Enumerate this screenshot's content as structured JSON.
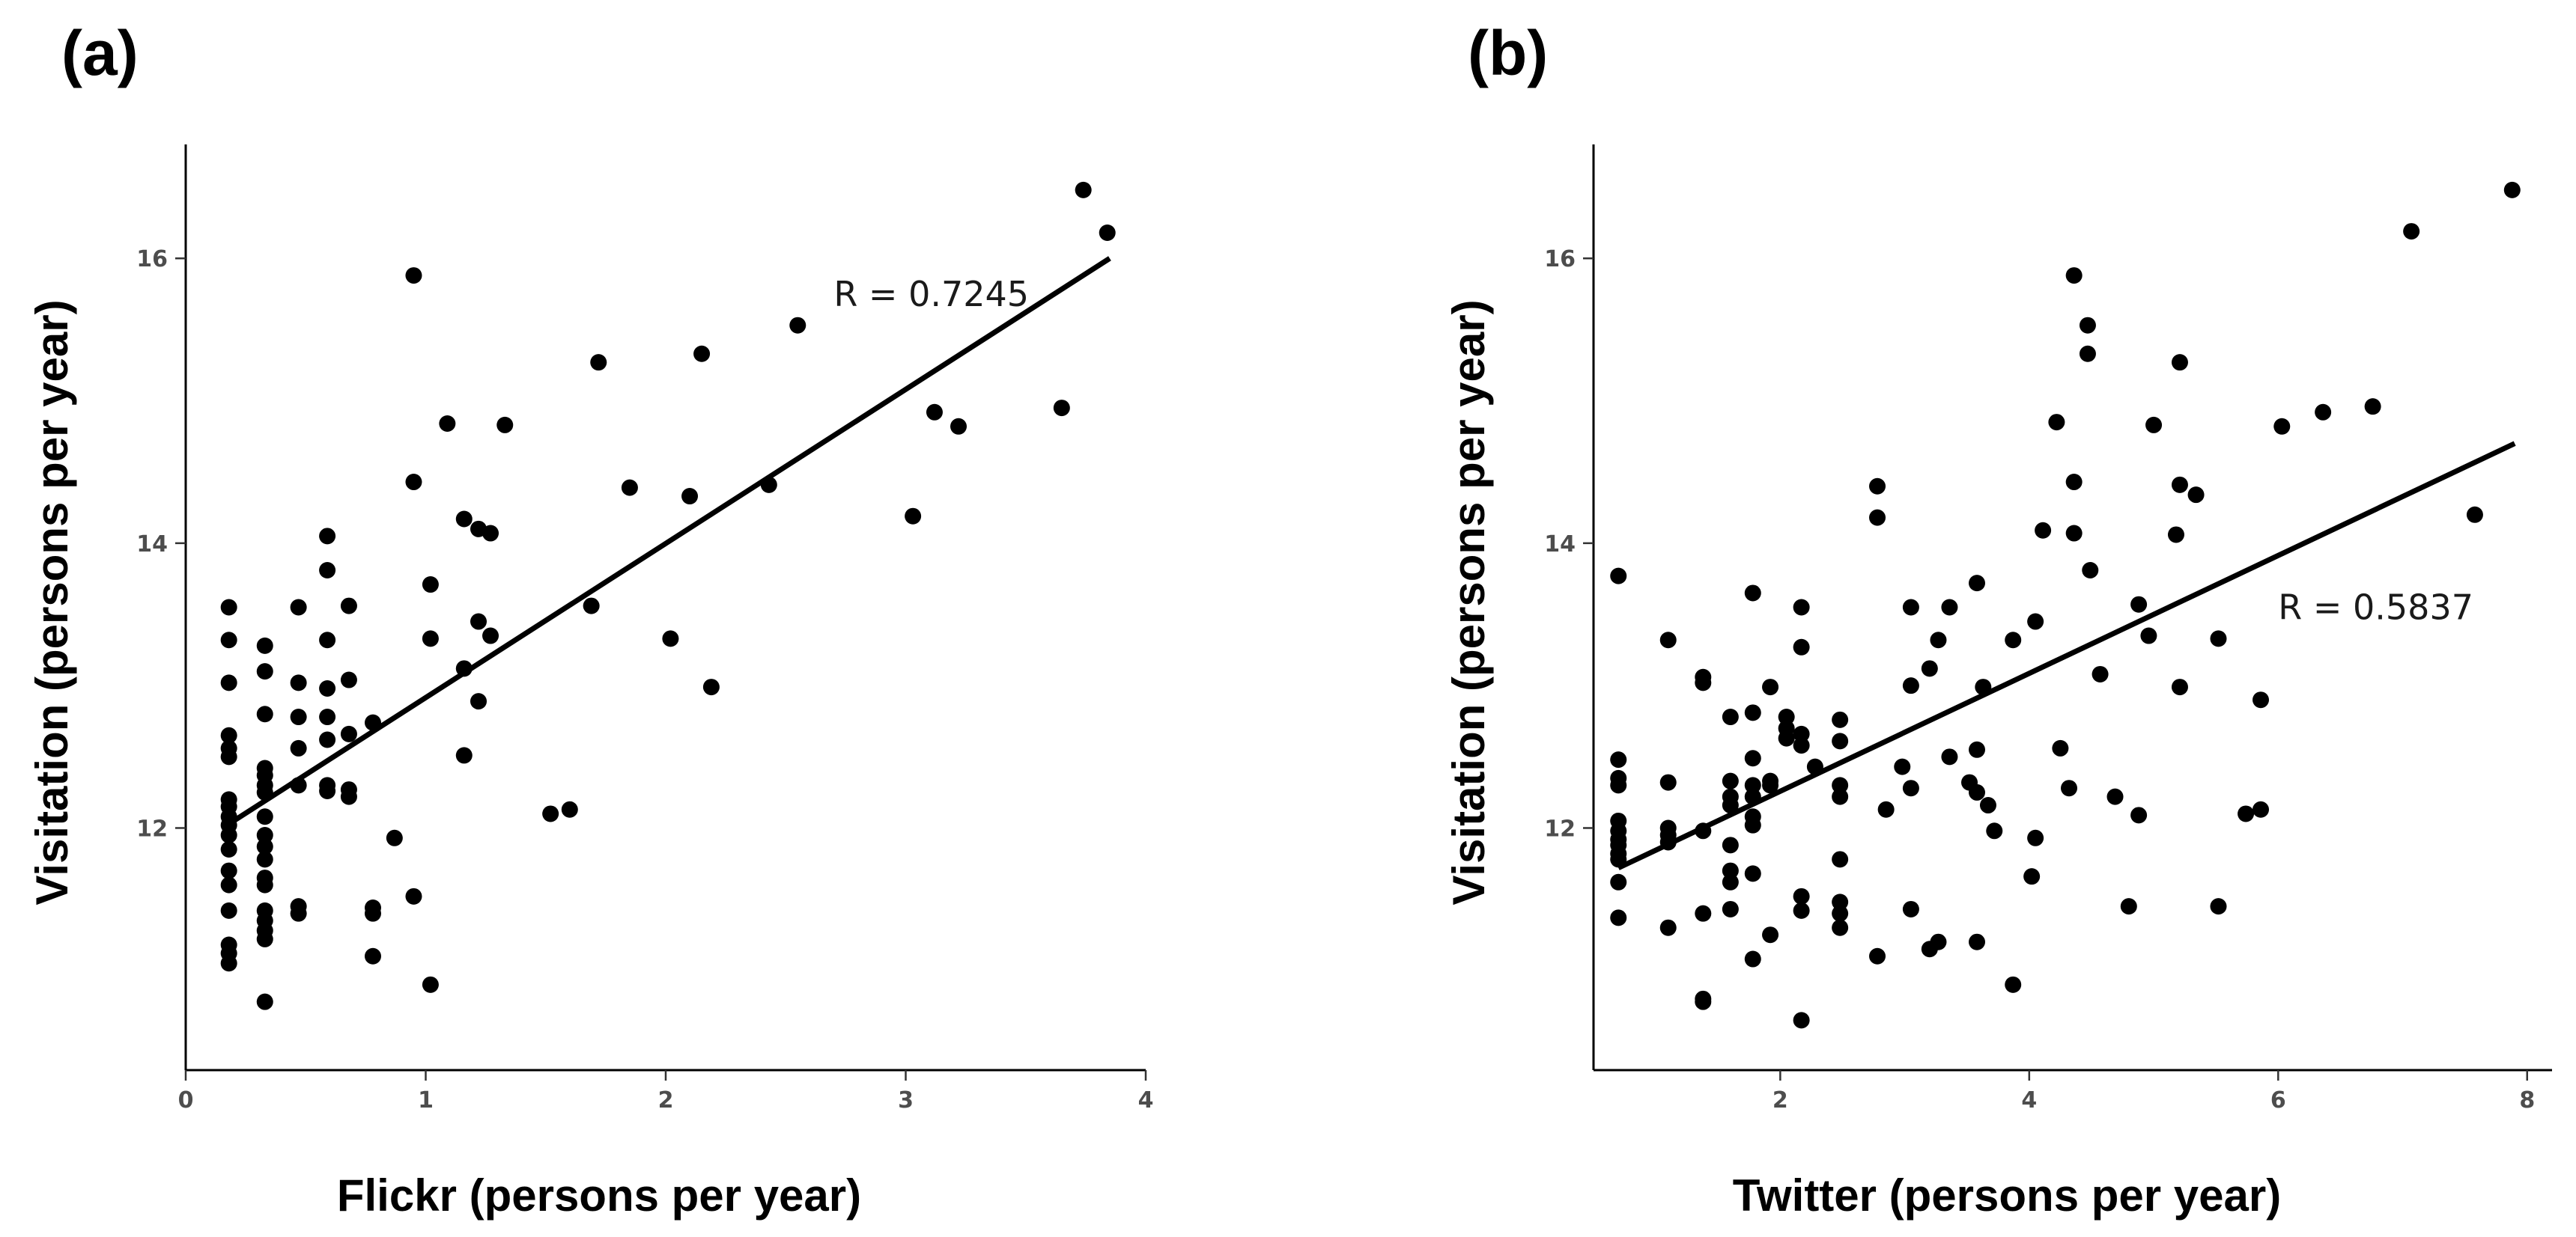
{
  "chart_data": [
    {
      "type": "scatter",
      "panel_label": "(a)",
      "xlabel": "Flickr (persons per year)",
      "ylabel": "Visitation (persons per year)",
      "xlim": [
        0,
        4
      ],
      "ylim": [
        10.3,
        16.8
      ],
      "xticks": [
        0,
        1,
        2,
        3,
        4
      ],
      "xtick_labels": [
        "0",
        "1",
        "2",
        "3",
        "4"
      ],
      "yticks": [
        12,
        14,
        16
      ],
      "ytick_labels": [
        "12",
        "14",
        "16"
      ],
      "grid": false,
      "legend": "none",
      "annotation": "R = 0.7245",
      "annotation_pos": [
        2.7,
        15.75
      ],
      "fit_line": {
        "x": [
          0.2,
          3.85
        ],
        "y": [
          12.05,
          16.0
        ]
      },
      "points": [
        [
          0.18,
          13.55
        ],
        [
          0.18,
          13.32
        ],
        [
          0.18,
          13.02
        ],
        [
          0.18,
          12.65
        ],
        [
          0.18,
          12.56
        ],
        [
          0.18,
          12.5
        ],
        [
          0.18,
          12.2
        ],
        [
          0.18,
          12.15
        ],
        [
          0.18,
          12.08
        ],
        [
          0.18,
          12.02
        ],
        [
          0.18,
          11.95
        ],
        [
          0.18,
          11.85
        ],
        [
          0.18,
          11.7
        ],
        [
          0.18,
          11.6
        ],
        [
          0.18,
          11.42
        ],
        [
          0.18,
          11.18
        ],
        [
          0.18,
          11.12
        ],
        [
          0.18,
          11.05
        ],
        [
          0.33,
          13.28
        ],
        [
          0.33,
          13.1
        ],
        [
          0.33,
          12.8
        ],
        [
          0.33,
          12.42
        ],
        [
          0.33,
          12.37
        ],
        [
          0.33,
          12.3
        ],
        [
          0.33,
          12.25
        ],
        [
          0.33,
          12.08
        ],
        [
          0.33,
          11.95
        ],
        [
          0.33,
          11.87
        ],
        [
          0.33,
          11.78
        ],
        [
          0.33,
          11.65
        ],
        [
          0.33,
          11.6
        ],
        [
          0.33,
          11.42
        ],
        [
          0.33,
          11.35
        ],
        [
          0.33,
          11.28
        ],
        [
          0.33,
          11.22
        ],
        [
          0.33,
          10.78
        ],
        [
          0.47,
          13.55
        ],
        [
          0.47,
          13.02
        ],
        [
          0.47,
          12.78
        ],
        [
          0.47,
          12.56
        ],
        [
          0.47,
          12.3
        ],
        [
          0.47,
          11.45
        ],
        [
          0.47,
          11.4
        ],
        [
          0.59,
          14.05
        ],
        [
          0.59,
          13.81
        ],
        [
          0.59,
          13.32
        ],
        [
          0.59,
          12.98
        ],
        [
          0.59,
          12.78
        ],
        [
          0.59,
          12.62
        ],
        [
          0.59,
          12.3
        ],
        [
          0.59,
          12.26
        ],
        [
          0.68,
          13.56
        ],
        [
          0.68,
          13.04
        ],
        [
          0.68,
          12.66
        ],
        [
          0.68,
          12.27
        ],
        [
          0.68,
          12.22
        ],
        [
          0.78,
          12.74
        ],
        [
          0.78,
          11.44
        ],
        [
          0.78,
          11.4
        ],
        [
          0.78,
          11.1
        ],
        [
          0.87,
          11.93
        ],
        [
          0.95,
          15.88
        ],
        [
          0.95,
          14.43
        ],
        [
          0.95,
          11.52
        ],
        [
          1.02,
          13.71
        ],
        [
          1.02,
          13.33
        ],
        [
          1.02,
          10.9
        ],
        [
          1.09,
          14.84
        ],
        [
          1.16,
          14.17
        ],
        [
          1.16,
          13.12
        ],
        [
          1.16,
          12.51
        ],
        [
          1.22,
          14.1
        ],
        [
          1.22,
          13.45
        ],
        [
          1.22,
          12.89
        ],
        [
          1.27,
          14.07
        ],
        [
          1.27,
          13.35
        ],
        [
          1.33,
          14.83
        ],
        [
          1.52,
          12.1
        ],
        [
          1.6,
          12.13
        ],
        [
          1.69,
          13.56
        ],
        [
          1.72,
          15.27
        ],
        [
          1.85,
          14.39
        ],
        [
          2.02,
          13.33
        ],
        [
          2.1,
          14.33
        ],
        [
          2.15,
          15.33
        ],
        [
          2.19,
          12.99
        ],
        [
          2.43,
          14.41
        ],
        [
          2.55,
          15.53
        ],
        [
          3.03,
          14.19
        ],
        [
          3.12,
          14.92
        ],
        [
          3.22,
          14.82
        ],
        [
          3.65,
          14.95
        ],
        [
          3.74,
          16.48
        ],
        [
          3.84,
          16.18
        ]
      ]
    },
    {
      "type": "scatter",
      "panel_label": "(b)",
      "xlabel": "Twitter (persons per year)",
      "ylabel": "Visitation (persons per year)",
      "xlim": [
        0.5,
        8.2
      ],
      "ylim": [
        10.3,
        16.8
      ],
      "xticks": [
        2,
        4,
        6,
        8
      ],
      "xtick_labels": [
        "2",
        "4",
        "6",
        "8"
      ],
      "yticks": [
        12,
        14,
        16
      ],
      "ytick_labels": [
        "12",
        "14",
        "16"
      ],
      "grid": false,
      "legend": "none",
      "annotation": "R = 0.5837",
      "annotation_pos": [
        6.0,
        13.55
      ],
      "fit_line": {
        "x": [
          0.7,
          7.9
        ],
        "y": [
          11.72,
          14.7
        ]
      },
      "points": [
        [
          0.7,
          13.77
        ],
        [
          0.7,
          12.48
        ],
        [
          0.7,
          12.35
        ],
        [
          0.7,
          12.3
        ],
        [
          0.7,
          12.05
        ],
        [
          0.7,
          11.98
        ],
        [
          0.7,
          11.92
        ],
        [
          0.7,
          11.88
        ],
        [
          0.7,
          11.82
        ],
        [
          0.7,
          11.78
        ],
        [
          0.7,
          11.62
        ],
        [
          0.7,
          11.37
        ],
        [
          1.1,
          13.32
        ],
        [
          1.1,
          12.32
        ],
        [
          1.1,
          12.0
        ],
        [
          1.1,
          11.95
        ],
        [
          1.1,
          11.9
        ],
        [
          1.1,
          11.3
        ],
        [
          1.38,
          13.06
        ],
        [
          1.38,
          13.02
        ],
        [
          1.38,
          11.98
        ],
        [
          1.38,
          11.4
        ],
        [
          1.38,
          10.8
        ],
        [
          1.38,
          10.78
        ],
        [
          1.6,
          12.78
        ],
        [
          1.6,
          12.33
        ],
        [
          1.6,
          12.22
        ],
        [
          1.6,
          12.16
        ],
        [
          1.6,
          11.88
        ],
        [
          1.6,
          11.7
        ],
        [
          1.6,
          11.62
        ],
        [
          1.6,
          11.43
        ],
        [
          1.78,
          13.65
        ],
        [
          1.78,
          12.81
        ],
        [
          1.78,
          12.49
        ],
        [
          1.78,
          12.3
        ],
        [
          1.78,
          12.22
        ],
        [
          1.78,
          12.08
        ],
        [
          1.78,
          12.02
        ],
        [
          1.78,
          11.68
        ],
        [
          1.78,
          11.08
        ],
        [
          1.92,
          12.99
        ],
        [
          1.92,
          12.33
        ],
        [
          1.92,
          12.3
        ],
        [
          1.92,
          11.25
        ],
        [
          2.05,
          12.78
        ],
        [
          2.05,
          12.7
        ],
        [
          2.05,
          12.63
        ],
        [
          2.17,
          13.55
        ],
        [
          2.17,
          13.27
        ],
        [
          2.17,
          12.66
        ],
        [
          2.17,
          12.58
        ],
        [
          2.17,
          11.52
        ],
        [
          2.17,
          11.42
        ],
        [
          2.17,
          10.65
        ],
        [
          2.28,
          12.43
        ],
        [
          2.48,
          12.76
        ],
        [
          2.48,
          12.61
        ],
        [
          2.48,
          12.3
        ],
        [
          2.48,
          12.22
        ],
        [
          2.48,
          11.78
        ],
        [
          2.48,
          11.48
        ],
        [
          2.48,
          11.4
        ],
        [
          2.48,
          11.3
        ],
        [
          2.78,
          14.4
        ],
        [
          2.78,
          14.18
        ],
        [
          2.78,
          11.1
        ],
        [
          2.85,
          12.13
        ],
        [
          2.98,
          12.43
        ],
        [
          3.05,
          13.55
        ],
        [
          3.05,
          13.0
        ],
        [
          3.05,
          12.28
        ],
        [
          3.05,
          11.43
        ],
        [
          3.2,
          13.12
        ],
        [
          3.2,
          11.15
        ],
        [
          3.27,
          13.32
        ],
        [
          3.27,
          11.2
        ],
        [
          3.36,
          13.55
        ],
        [
          3.36,
          12.5
        ],
        [
          3.52,
          12.32
        ],
        [
          3.58,
          13.72
        ],
        [
          3.58,
          12.55
        ],
        [
          3.58,
          12.25
        ],
        [
          3.58,
          11.2
        ],
        [
          3.63,
          12.99
        ],
        [
          3.67,
          12.16
        ],
        [
          3.72,
          11.98
        ],
        [
          3.87,
          13.32
        ],
        [
          3.87,
          10.9
        ],
        [
          4.02,
          11.66
        ],
        [
          4.05,
          13.45
        ],
        [
          4.05,
          11.93
        ],
        [
          4.11,
          14.09
        ],
        [
          4.22,
          14.85
        ],
        [
          4.25,
          12.56
        ],
        [
          4.32,
          12.28
        ],
        [
          4.36,
          15.88
        ],
        [
          4.36,
          14.43
        ],
        [
          4.36,
          14.07
        ],
        [
          4.47,
          15.53
        ],
        [
          4.47,
          15.33
        ],
        [
          4.49,
          13.81
        ],
        [
          4.57,
          13.08
        ],
        [
          4.69,
          12.22
        ],
        [
          4.8,
          11.45
        ],
        [
          4.88,
          13.57
        ],
        [
          4.88,
          12.09
        ],
        [
          4.96,
          13.35
        ],
        [
          5.0,
          14.83
        ],
        [
          5.18,
          14.06
        ],
        [
          5.21,
          15.27
        ],
        [
          5.21,
          14.41
        ],
        [
          5.21,
          12.99
        ],
        [
          5.34,
          14.34
        ],
        [
          5.52,
          13.33
        ],
        [
          5.52,
          11.45
        ],
        [
          5.74,
          12.1
        ],
        [
          5.86,
          12.9
        ],
        [
          5.86,
          12.13
        ],
        [
          6.03,
          14.82
        ],
        [
          6.36,
          14.92
        ],
        [
          6.76,
          14.96
        ],
        [
          7.07,
          16.19
        ],
        [
          7.58,
          14.2
        ],
        [
          7.88,
          16.48
        ]
      ]
    }
  ]
}
